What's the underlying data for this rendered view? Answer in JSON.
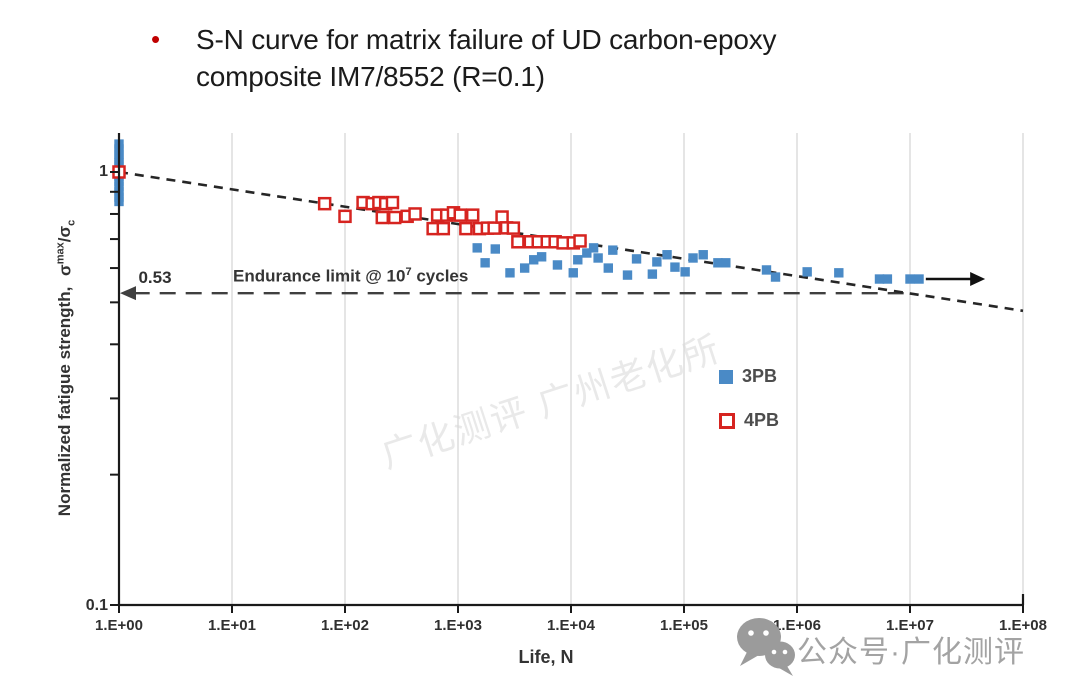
{
  "slide": {
    "bullet_glyph": "•",
    "accent_color": "#c00000",
    "title_lines": [
      "S-N curve for matrix failure of UD carbon-epoxy",
      "composite IM7/8552 (R=0.1)"
    ]
  },
  "chart_data": {
    "type": "scatter",
    "x_axis": {
      "label": "Life, N",
      "scale": "log10",
      "tick_labels": [
        "1.E+00",
        "1.E+01",
        "1.E+02",
        "1.E+03",
        "1.E+04",
        "1.E+05",
        "1.E+06",
        "1.E+07",
        "1.E+08"
      ],
      "tick_log10_values": [
        0,
        1,
        2,
        3,
        4,
        5,
        6,
        7,
        8
      ],
      "range_log10": [
        0,
        8
      ]
    },
    "y_axis": {
      "label_text": "Normalized fatigue strength,",
      "label_sigma": "σ",
      "label_sup": "max",
      "label_slash_sigma": "/σ",
      "label_sub": "c",
      "scale": "log10",
      "tick_labels": [
        "1",
        "0.1"
      ],
      "tick_values": [
        1,
        0.1
      ],
      "minor_tick_values": [
        0.9,
        0.8,
        0.7,
        0.6,
        0.5,
        0.4,
        0.3,
        0.2
      ],
      "range": [
        0.1,
        1.23
      ],
      "grid": "vertical-only"
    },
    "gridlines_log10N": [
      1,
      2,
      3,
      4,
      5,
      6,
      7,
      8
    ],
    "series": [
      {
        "name": "3PB",
        "marker": "filled-square",
        "color": "#4a8ac6",
        "points_log10N_sigma": [
          [
            0,
            1.16
          ],
          [
            0,
            1.13
          ],
          [
            0,
            1.1
          ],
          [
            0,
            1.075
          ],
          [
            0,
            1.05
          ],
          [
            0,
            1.025
          ],
          [
            0,
            1.0
          ],
          [
            0,
            0.975
          ],
          [
            0,
            0.95
          ],
          [
            0,
            0.925
          ],
          [
            0,
            0.9
          ],
          [
            0,
            0.875
          ],
          [
            0,
            0.855
          ],
          [
            3.17,
            0.668
          ],
          [
            3.24,
            0.617
          ],
          [
            3.33,
            0.664
          ],
          [
            3.46,
            0.585
          ],
          [
            3.59,
            0.6
          ],
          [
            3.67,
            0.627
          ],
          [
            3.74,
            0.637
          ],
          [
            3.88,
            0.61
          ],
          [
            4.02,
            0.585
          ],
          [
            4.06,
            0.627
          ],
          [
            4.14,
            0.65
          ],
          [
            4.2,
            0.668
          ],
          [
            4.24,
            0.633
          ],
          [
            4.33,
            0.6
          ],
          [
            4.37,
            0.66
          ],
          [
            4.5,
            0.578
          ],
          [
            4.58,
            0.63
          ],
          [
            4.72,
            0.581
          ],
          [
            4.76,
            0.62
          ],
          [
            4.85,
            0.644
          ],
          [
            4.92,
            0.603
          ],
          [
            5.01,
            0.588
          ],
          [
            5.08,
            0.633
          ],
          [
            5.17,
            0.644
          ],
          [
            5.3,
            0.617
          ],
          [
            5.37,
            0.617
          ],
          [
            5.73,
            0.594
          ],
          [
            5.81,
            0.572
          ],
          [
            6.09,
            0.588
          ],
          [
            6.37,
            0.585
          ],
          [
            6.73,
            0.566
          ],
          [
            6.8,
            0.566
          ],
          [
            7.0,
            0.566
          ],
          [
            7.08,
            0.566
          ]
        ]
      },
      {
        "name": "4PB",
        "marker": "open-square",
        "color": "#d62420",
        "points_log10N_sigma": [
          [
            0,
            1.0
          ],
          [
            1.82,
            0.845
          ],
          [
            2.0,
            0.79
          ],
          [
            2.16,
            0.85
          ],
          [
            2.24,
            0.845
          ],
          [
            2.3,
            0.85
          ],
          [
            2.36,
            0.845
          ],
          [
            2.42,
            0.85
          ],
          [
            2.33,
            0.785
          ],
          [
            2.44,
            0.785
          ],
          [
            2.55,
            0.79
          ],
          [
            2.62,
            0.8
          ],
          [
            2.78,
            0.74
          ],
          [
            2.82,
            0.795
          ],
          [
            2.87,
            0.74
          ],
          [
            2.9,
            0.795
          ],
          [
            2.96,
            0.805
          ],
          [
            3.02,
            0.795
          ],
          [
            3.07,
            0.74
          ],
          [
            3.13,
            0.795
          ],
          [
            3.19,
            0.74
          ],
          [
            3.26,
            0.742
          ],
          [
            3.32,
            0.742
          ],
          [
            3.39,
            0.787
          ],
          [
            3.43,
            0.743
          ],
          [
            3.49,
            0.742
          ],
          [
            3.53,
            0.69
          ],
          [
            3.64,
            0.69
          ],
          [
            3.71,
            0.69
          ],
          [
            3.79,
            0.69
          ],
          [
            3.86,
            0.69
          ],
          [
            3.93,
            0.686
          ],
          [
            4.02,
            0.686
          ],
          [
            4.08,
            0.693
          ]
        ]
      }
    ],
    "fit_line": {
      "style": "dashed",
      "from_log10N_sigma": [
        0,
        1.0
      ],
      "to_log10N_sigma": [
        8,
        0.478
      ]
    },
    "endurance_limit": {
      "value_label": "0.53",
      "sigma": 0.525,
      "line_span_log10N": [
        0.13,
        6.98
      ],
      "annotation_prefix": "Endurance limit @ 10",
      "annotation_sup": "7",
      "annotation_suffix": "cycles"
    },
    "runout_arrow": {
      "sigma": 0.566,
      "from_log10N": 7.14,
      "to_log10N": 7.55
    },
    "legend_position": "center-right"
  },
  "watermarks": {
    "diagonal_text": "广化测评 广州老化所",
    "footer_text": "公众号·广化测评",
    "footer_icon": "wechat-icon"
  }
}
